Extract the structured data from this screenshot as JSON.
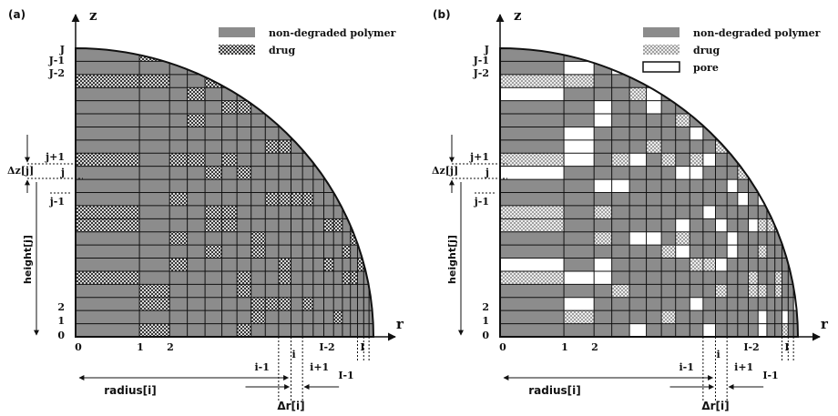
{
  "colors": {
    "polymer": "#8c8c8c",
    "cell_line": "#111111",
    "drug_a_fill": "#d8d8d8",
    "drug_a_dot": "#3a3a3a",
    "drug_b_fill": "#e9e9e9",
    "drug_b_dot": "#9a9a9a",
    "pore": "#ffffff"
  },
  "panels": [
    {
      "id": "a",
      "panel_label": "(a)",
      "z_axis": "z",
      "r_axis": "r",
      "row_labels": [
        "J",
        "J-1",
        "J-2",
        "j+1",
        "j",
        "j-1",
        "2",
        "1",
        "0"
      ],
      "col_labels": [
        "0",
        "1",
        "2",
        "I-2",
        "I-1",
        "I"
      ],
      "dz_label": "Δz[j]",
      "height_label": "height[j]",
      "radius_label": "radius[i]",
      "dr_label": "Δr[i]",
      "i_minus": "i-1",
      "i_label": "i",
      "i_plus": "i+1",
      "legend": [
        {
          "kind": "polymer",
          "label": "non-degraded polymer"
        },
        {
          "kind": "drug",
          "label": "drug"
        }
      ]
    },
    {
      "id": "b",
      "panel_label": "(b)",
      "z_axis": "z",
      "r_axis": "r",
      "row_labels": [
        "J",
        "J-1",
        "J-2",
        "j+1",
        "j",
        "j-1",
        "2",
        "1",
        "0"
      ],
      "col_labels": [
        "0",
        "1",
        "2",
        "I-2",
        "I-1",
        "I"
      ],
      "dz_label": "Δz[j]",
      "height_label": "height[j]",
      "radius_label": "radius[i]",
      "dr_label": "Δr[i]",
      "i_minus": "i-1",
      "i_label": "i",
      "i_plus": "i+1",
      "legend": [
        {
          "kind": "polymer",
          "label": "non-degraded polymer"
        },
        {
          "kind": "drug",
          "label": "drug"
        },
        {
          "kind": "pore",
          "label": "pore"
        }
      ]
    }
  ]
}
